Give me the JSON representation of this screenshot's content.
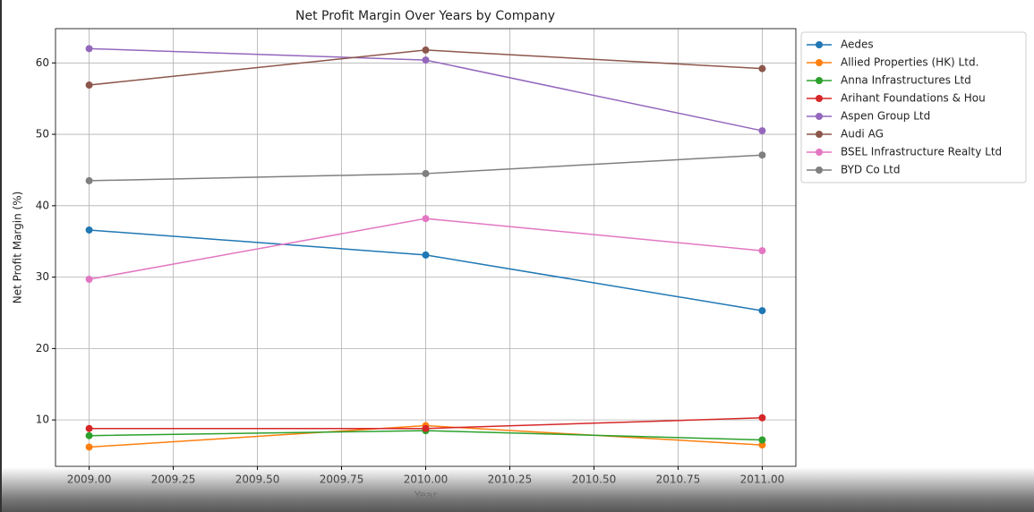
{
  "chart_data": {
    "type": "line",
    "title": "Net Profit Margin Over Years by Company",
    "xlabel": "Year",
    "ylabel": "Net Profit Margin (%)",
    "x": [
      2009,
      2010,
      2011
    ],
    "xlim": [
      2008.9,
      2011.1
    ],
    "xticks": [
      {
        "value": 2009,
        "label": "2009.00"
      },
      {
        "value": 2009.25,
        "label": "2009.25"
      },
      {
        "value": 2009.5,
        "label": "2009.50"
      },
      {
        "value": 2009.75,
        "label": "2009.75"
      },
      {
        "value": 2010,
        "label": "2010.00"
      },
      {
        "value": 2010.25,
        "label": "2010.25"
      },
      {
        "value": 2010.5,
        "label": "2010.50"
      },
      {
        "value": 2010.75,
        "label": "2010.75"
      },
      {
        "value": 2011,
        "label": "2011.00"
      }
    ],
    "ylim": [
      3.5,
      64.8
    ],
    "yticks": [
      10,
      20,
      30,
      40,
      50,
      60
    ],
    "grid": true,
    "legend": "outside-upper-right",
    "series": [
      {
        "name": "Aedes",
        "color": "#1f77b4",
        "values": [
          36.6,
          33.1,
          25.3
        ]
      },
      {
        "name": "Allied Properties (HK) Ltd.",
        "color": "#ff7f0e",
        "values": [
          6.2,
          9.2,
          6.5
        ]
      },
      {
        "name": "Anna Infrastructures Ltd",
        "color": "#2ca02c",
        "values": [
          7.8,
          8.5,
          7.2
        ]
      },
      {
        "name": "Arihant Foundations & Hou",
        "color": "#d62728",
        "values": [
          8.8,
          8.8,
          10.3
        ]
      },
      {
        "name": "Aspen Group Ltd",
        "color": "#9467bd",
        "values": [
          62.0,
          60.4,
          50.5
        ]
      },
      {
        "name": "Audi AG",
        "color": "#8c564b",
        "values": [
          56.9,
          61.8,
          59.2
        ]
      },
      {
        "name": "BSEL Infrastructure Realty Ltd",
        "color": "#e377c2",
        "values": [
          29.7,
          38.2,
          33.7
        ]
      },
      {
        "name": "BYD Co Ltd",
        "color": "#7f7f7f",
        "values": [
          43.5,
          44.5,
          47.1
        ]
      }
    ]
  }
}
